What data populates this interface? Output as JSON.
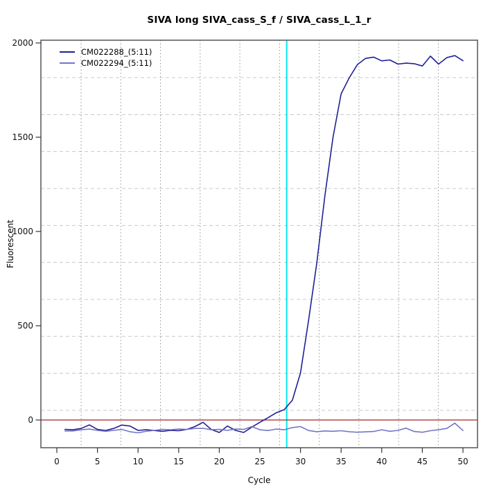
{
  "chart_data": {
    "type": "line",
    "title": "SIVA long SIVA_cass_S_f / SIVA_cass_L_1_r",
    "xlabel": "Cycle",
    "ylabel": "Fluorescent",
    "x_ticks": [
      0,
      5,
      10,
      15,
      20,
      25,
      30,
      35,
      40,
      45,
      50
    ],
    "y_ticks": [
      0,
      500,
      1000,
      1500,
      2000
    ],
    "xlim": [
      -2,
      52
    ],
    "ylim": [
      -150,
      2015
    ],
    "grid": true,
    "legend_position": "top-left",
    "x": [
      1,
      2,
      3,
      4,
      5,
      6,
      7,
      8,
      9,
      10,
      11,
      12,
      13,
      14,
      15,
      16,
      17,
      18,
      19,
      20,
      21,
      22,
      23,
      24,
      25,
      26,
      27,
      28,
      29,
      30,
      31,
      32,
      33,
      34,
      35,
      36,
      37,
      38,
      39,
      40,
      41,
      42,
      43,
      44,
      45,
      46,
      47,
      48,
      49,
      50
    ],
    "series": [
      {
        "name": "CM022288_(5:11)",
        "color": "#1f1f96",
        "values": [
          -50,
          -52,
          -45,
          -26,
          -50,
          -56,
          -45,
          -27,
          -32,
          -55,
          -52,
          -56,
          -60,
          -55,
          -57,
          -50,
          -35,
          -12,
          -50,
          -66,
          -32,
          -55,
          -66,
          -38,
          -12,
          12,
          38,
          55,
          105,
          250,
          530,
          830,
          1190,
          1500,
          1730,
          1815,
          1885,
          1918,
          1925,
          1905,
          1910,
          1888,
          1893,
          1890,
          1878,
          1930,
          1888,
          1922,
          1933,
          1906
        ]
      },
      {
        "name": "CM022294_(5:11)",
        "color": "#7474c8",
        "values": [
          -58,
          -58,
          -52,
          -48,
          -55,
          -60,
          -55,
          -50,
          -62,
          -68,
          -60,
          -55,
          -50,
          -52,
          -48,
          -50,
          -45,
          -44,
          -52,
          -50,
          -55,
          -48,
          -50,
          -35,
          -52,
          -56,
          -48,
          -52,
          -40,
          -35,
          -56,
          -62,
          -58,
          -60,
          -57,
          -62,
          -65,
          -63,
          -61,
          -52,
          -60,
          -55,
          -43,
          -61,
          -65,
          -57,
          -52,
          -45,
          -17,
          -56
        ]
      }
    ],
    "reference_lines": {
      "horizontal": {
        "value": 0,
        "color": "#9e2828",
        "style": "solid"
      },
      "vertical": {
        "cycle": 28.3,
        "color": "#00e8ee",
        "style": "solid"
      }
    }
  }
}
